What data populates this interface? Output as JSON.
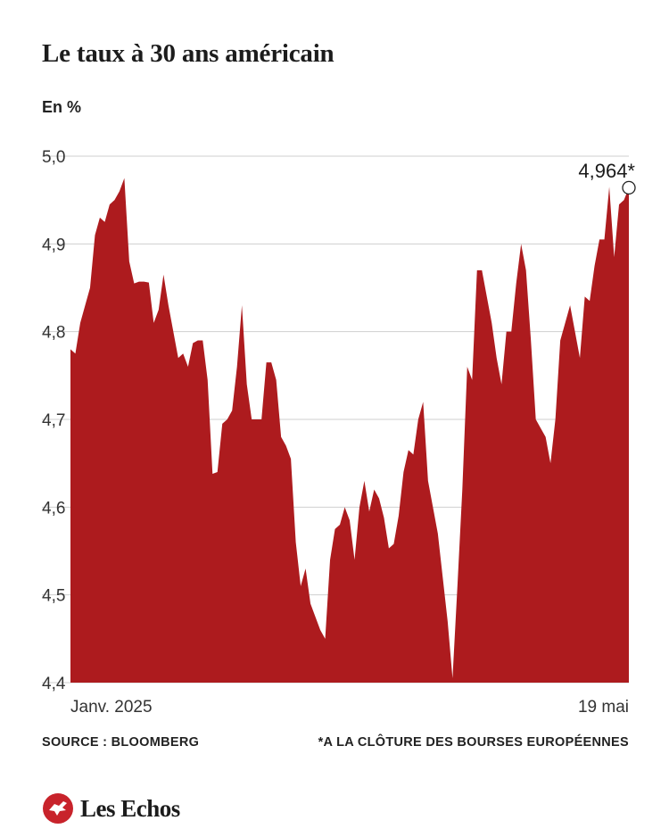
{
  "title": "Le taux à 30 ans américain",
  "unit_label": "En %",
  "source": "SOURCE : BLOOMBERG",
  "footnote": "*A LA CLÔTURE DES BOURSES EUROPÉENNES",
  "brand": "Les Echos",
  "colors": {
    "area": "#ad1b1e",
    "brand": "#c8232b"
  },
  "chart_data": {
    "type": "area",
    "ylim": [
      4.4,
      5.0
    ],
    "yticks": [
      "4,4",
      "4,5",
      "4,6",
      "4,7",
      "4,8",
      "4,9",
      "5,0"
    ],
    "yvals": [
      4.4,
      4.5,
      4.6,
      4.7,
      4.8,
      4.9,
      5.0
    ],
    "grid": true,
    "x_start_label": "Janv. 2025",
    "x_end_label": "19 mai",
    "last_value_label": "4,964*",
    "series": [
      {
        "values": [
          4.78,
          4.775,
          4.81,
          4.83,
          4.85,
          4.91,
          4.93,
          4.925,
          4.945,
          4.95,
          4.96,
          4.975,
          4.88,
          4.855,
          4.857,
          4.857,
          4.856,
          4.81,
          4.825,
          4.865,
          4.83,
          4.8,
          4.77,
          4.775,
          4.76,
          4.787,
          4.79,
          4.79,
          4.745,
          4.638,
          4.64,
          4.695,
          4.7,
          4.71,
          4.76,
          4.83,
          4.74,
          4.7,
          4.7,
          4.7,
          4.765,
          4.765,
          4.745,
          4.68,
          4.67,
          4.655,
          4.56,
          4.51,
          4.53,
          4.49,
          4.475,
          4.46,
          4.45,
          4.54,
          4.575,
          4.58,
          4.6,
          4.585,
          4.54,
          4.6,
          4.63,
          4.595,
          4.62,
          4.61,
          4.588,
          4.553,
          4.558,
          4.59,
          4.64,
          4.665,
          4.66,
          4.7,
          4.72,
          4.63,
          4.6,
          4.57,
          4.52,
          4.47,
          4.405,
          4.51,
          4.62,
          4.76,
          4.745,
          4.87,
          4.87,
          4.84,
          4.81,
          4.77,
          4.74,
          4.8,
          4.8,
          4.855,
          4.9,
          4.87,
          4.79,
          4.7,
          4.69,
          4.68,
          4.65,
          4.7,
          4.79,
          4.81,
          4.83,
          4.8,
          4.77,
          4.84,
          4.835,
          4.875,
          4.905,
          4.905,
          4.965,
          4.885,
          4.945,
          4.95,
          4.964
        ]
      }
    ]
  }
}
